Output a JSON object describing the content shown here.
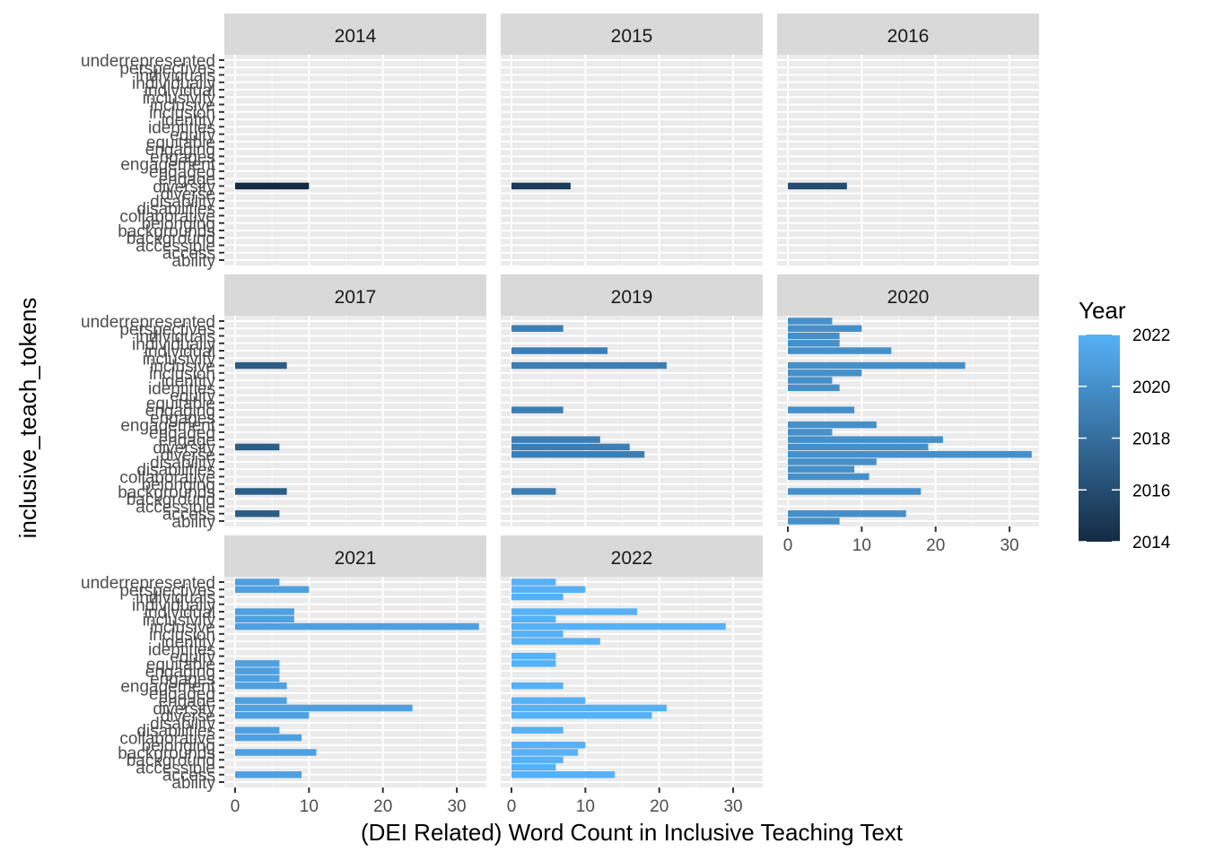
{
  "chart_data": {
    "type": "bar",
    "orientation": "horizontal",
    "faceted_by": "year",
    "xlabel": "(DEI Related) Word Count in Inclusive Teaching Text",
    "ylabel": "inclusive_teach_tokens",
    "xlim": [
      0,
      34
    ],
    "x_ticks": [
      "0",
      "10",
      "20",
      "30"
    ],
    "grid": true,
    "legend": {
      "title": "Year",
      "placement": "right",
      "type": "colorbar",
      "breaks": [
        "2022",
        "2020",
        "2018",
        "2016",
        "2014"
      ],
      "range": [
        2014,
        2022
      ],
      "color_low": "#132B43",
      "color_high": "#56B1F7"
    },
    "categories": [
      "ability",
      "access",
      "accessible",
      "background",
      "backgrounds",
      "belonging",
      "collaborative",
      "disabilities",
      "disability",
      "diverse",
      "diversity",
      "engage",
      "engaged",
      "engagement",
      "engages",
      "engaging",
      "equitable",
      "equity",
      "identities",
      "identity",
      "inclusion",
      "inclusive",
      "inclusivity",
      "individual",
      "individually",
      "individuals",
      "perspectives",
      "underrepresented"
    ],
    "y_tick_labels": [
      "underrepresented",
      "perspectives",
      "individuals",
      "individually",
      "individual",
      "inclusivity",
      "inclusive",
      "inclusion",
      "identity",
      "identities",
      "equity",
      "equitable",
      "engaging",
      "engages",
      "engagement",
      "engaged",
      "engage",
      "diversity",
      "diverse",
      "disability",
      "disabilities",
      "collaborative",
      "belonging",
      "backgrounds",
      "background",
      "accessible",
      "access",
      "ability"
    ],
    "facets": [
      {
        "label": "2014",
        "year": 2014,
        "values": {
          "diversity": 10
        }
      },
      {
        "label": "2015",
        "year": 2015,
        "values": {
          "diversity": 8
        }
      },
      {
        "label": "2016",
        "year": 2016,
        "values": {
          "diversity": 8
        }
      },
      {
        "label": "2017",
        "year": 2017,
        "values": {
          "inclusive": 7,
          "diversity": 6,
          "backgrounds": 7,
          "access": 6
        }
      },
      {
        "label": "2019",
        "year": 2019,
        "values": {
          "perspectives": 7,
          "individual": 13,
          "inclusive": 21,
          "engaging": 7,
          "engage": 12,
          "diversity": 16,
          "diverse": 18,
          "backgrounds": 6
        }
      },
      {
        "label": "2020",
        "year": 2020,
        "values": {
          "underrepresented": 6,
          "perspectives": 10,
          "individuals": 7,
          "individually": 7,
          "individual": 14,
          "inclusive": 24,
          "inclusion": 10,
          "identity": 6,
          "identities": 7,
          "engaging": 9,
          "engagement": 12,
          "engaged": 6,
          "engage": 21,
          "diversity": 19,
          "diverse": 33,
          "disability": 12,
          "disabilities": 9,
          "collaborative": 11,
          "backgrounds": 18,
          "access": 16,
          "ability": 7
        }
      },
      {
        "label": "2021",
        "year": 2021,
        "values": {
          "underrepresented": 6,
          "perspectives": 10,
          "individual": 8,
          "inclusivity": 8,
          "inclusive": 33,
          "equitable": 6,
          "engaging": 6,
          "engages": 6,
          "engagement": 7,
          "engage": 7,
          "diversity": 24,
          "diverse": 10,
          "disabilities": 6,
          "collaborative": 9,
          "backgrounds": 11,
          "access": 9
        }
      },
      {
        "label": "2022",
        "year": 2022,
        "values": {
          "underrepresented": 6,
          "perspectives": 10,
          "individuals": 7,
          "individual": 17,
          "inclusivity": 6,
          "inclusive": 29,
          "inclusion": 7,
          "identity": 12,
          "equity": 6,
          "equitable": 6,
          "engagement": 7,
          "engage": 10,
          "diversity": 21,
          "diverse": 19,
          "disabilities": 7,
          "belonging": 10,
          "backgrounds": 9,
          "background": 7,
          "accessible": 6,
          "access": 14
        }
      }
    ]
  }
}
